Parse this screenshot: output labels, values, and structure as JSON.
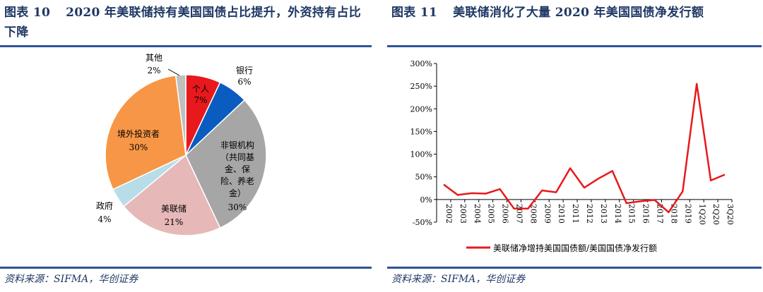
{
  "left": {
    "title_label": "图表 10",
    "title_text": "2020 年美联储持有美国国债占比提升，外资持有占比下降",
    "source": "资料来源：SIFMA，华创证券",
    "chart_data": {
      "type": "pie",
      "slices": [
        {
          "name": "个人",
          "value": 7,
          "label": "7%",
          "color": "#e8191c"
        },
        {
          "name": "银行",
          "value": 6,
          "label": "6%",
          "color": "#0a5cc0"
        },
        {
          "name": "非银机构（共同基金、保险、养老金）",
          "value": 30,
          "label": "30%",
          "color": "#a6a6a6"
        },
        {
          "name": "美联储",
          "value": 21,
          "label": "21%",
          "color": "#e6b8b7"
        },
        {
          "name": "政府",
          "value": 4,
          "label": "4%",
          "color": "#b7dde8"
        },
        {
          "name": "境外投资者",
          "value": 30,
          "label": "30%",
          "color": "#f79646"
        },
        {
          "name": "其他",
          "value": 2,
          "label": "2%",
          "color": "#c0c0c0"
        }
      ],
      "labels": {
        "individual": [
          "个人",
          "7%"
        ],
        "bank": [
          "银行",
          "6%"
        ],
        "nonbank": [
          "非银机构",
          "（共同基",
          "金、保",
          "险、养老",
          "金）",
          "30%"
        ],
        "fed": [
          "美联储",
          "21%"
        ],
        "gov": [
          "政府",
          "4%"
        ],
        "foreign": [
          "境外投资者",
          "30%"
        ],
        "other": [
          "其他",
          "2%"
        ]
      }
    }
  },
  "right": {
    "title_label": "图表 11",
    "title_text": "美联储消化了大量 2020 年美国国债净发行额",
    "source": "资料来源：SIFMA，华创证券",
    "chart_data": {
      "type": "line",
      "x": [
        "2002",
        "2003",
        "2004",
        "2005",
        "2006",
        "2007",
        "2008",
        "2009",
        "2010",
        "2011",
        "2012",
        "2013",
        "2014",
        "2015",
        "2016",
        "2017",
        "2018",
        "2019",
        "1Q20",
        "2Q20",
        "3Q20"
      ],
      "series": [
        {
          "name": "美联储净增持美国国债额/美国国债净发行额",
          "color": "#e8191c",
          "values": [
            33,
            10,
            14,
            13,
            23,
            -20,
            -20,
            20,
            16,
            69,
            26,
            46,
            63,
            -8,
            -4,
            -1,
            -28,
            18,
            255,
            42,
            55
          ]
        }
      ],
      "ylim": [
        -50,
        300
      ],
      "yticks": [
        "-50%",
        "0%",
        "50%",
        "100%",
        "150%",
        "200%",
        "250%",
        "300%"
      ],
      "ytick_values": [
        -50,
        0,
        50,
        100,
        150,
        200,
        250,
        300
      ],
      "legend_position": "bottom"
    }
  }
}
